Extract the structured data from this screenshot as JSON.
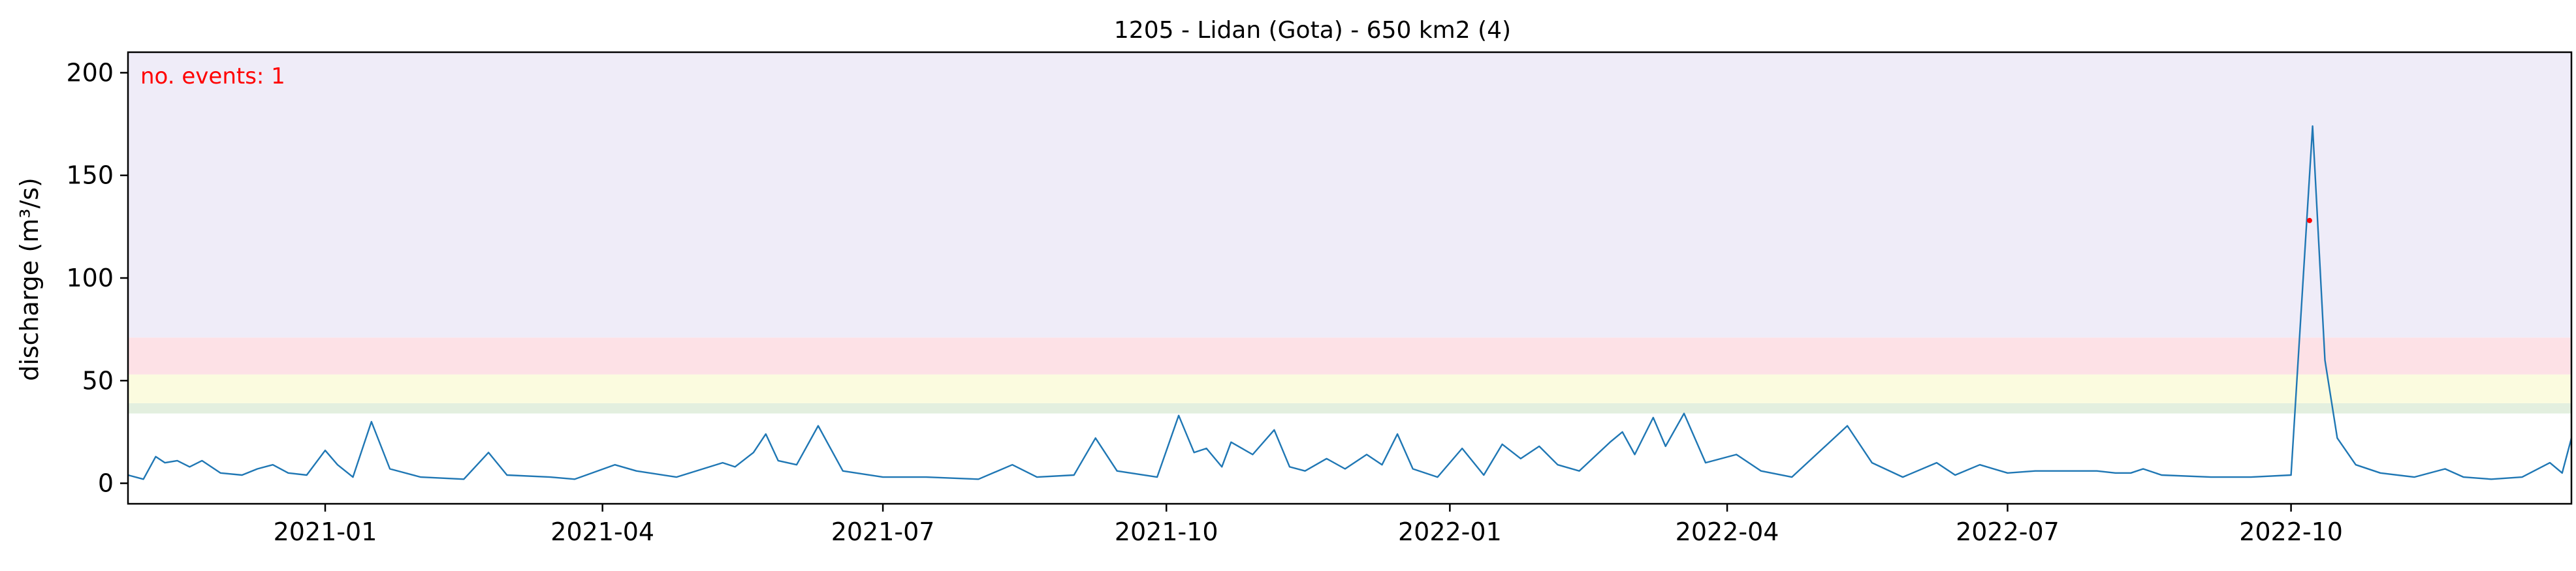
{
  "chart_data": {
    "type": "line",
    "title": "1205 - Lidan (Gota) - 650 km2 (4)",
    "xlabel": "",
    "ylabel": "discharge (m³/s)",
    "annotation": "no. events: 1",
    "xlim": [
      "2020-10-29",
      "2022-12-31"
    ],
    "ylim": [
      -10,
      210
    ],
    "x_ticks": [
      "2021-01",
      "2021-04",
      "2021-07",
      "2021-10",
      "2022-01",
      "2022-04",
      "2022-07",
      "2022-10"
    ],
    "y_ticks": [
      0,
      50,
      100,
      150,
      200
    ],
    "threshold_bands": [
      {
        "from": 34,
        "to": 39,
        "color": "#e3efdf"
      },
      {
        "from": 39,
        "to": 53,
        "color": "#fbfbdf"
      },
      {
        "from": 53,
        "to": 71,
        "color": "#fde1e6"
      },
      {
        "from": 71,
        "to": 210,
        "color": "#efecf8"
      }
    ],
    "line_color": "#1f77b4",
    "event_color": "#ff0000",
    "grid": false,
    "legend": "none",
    "series": [
      {
        "points": [
          [
            "2020-10-29",
            4
          ],
          [
            "2020-11-03",
            2
          ],
          [
            "2020-11-07",
            13
          ],
          [
            "2020-11-10",
            10
          ],
          [
            "2020-11-14",
            11
          ],
          [
            "2020-11-18",
            8
          ],
          [
            "2020-11-22",
            11
          ],
          [
            "2020-11-28",
            5
          ],
          [
            "2020-12-05",
            4
          ],
          [
            "2020-12-10",
            7
          ],
          [
            "2020-12-15",
            9
          ],
          [
            "2020-12-20",
            5
          ],
          [
            "2020-12-26",
            4
          ],
          [
            "2021-01-01",
            16
          ],
          [
            "2021-01-05",
            9
          ],
          [
            "2021-01-10",
            3
          ],
          [
            "2021-01-16",
            30
          ],
          [
            "2021-01-22",
            7
          ],
          [
            "2021-02-01",
            3
          ],
          [
            "2021-02-15",
            2
          ],
          [
            "2021-02-23",
            15
          ],
          [
            "2021-03-01",
            4
          ],
          [
            "2021-03-15",
            3
          ],
          [
            "2021-03-23",
            2
          ],
          [
            "2021-04-05",
            9
          ],
          [
            "2021-04-12",
            6
          ],
          [
            "2021-04-25",
            3
          ],
          [
            "2021-05-10",
            10
          ],
          [
            "2021-05-14",
            8
          ],
          [
            "2021-05-20",
            15
          ],
          [
            "2021-05-24",
            24
          ],
          [
            "2021-05-28",
            11
          ],
          [
            "2021-06-03",
            9
          ],
          [
            "2021-06-10",
            28
          ],
          [
            "2021-06-18",
            6
          ],
          [
            "2021-07-01",
            3
          ],
          [
            "2021-07-15",
            3
          ],
          [
            "2021-08-01",
            2
          ],
          [
            "2021-08-12",
            9
          ],
          [
            "2021-08-20",
            3
          ],
          [
            "2021-09-01",
            4
          ],
          [
            "2021-09-08",
            22
          ],
          [
            "2021-09-15",
            6
          ],
          [
            "2021-09-28",
            3
          ],
          [
            "2021-10-05",
            33
          ],
          [
            "2021-10-10",
            15
          ],
          [
            "2021-10-14",
            17
          ],
          [
            "2021-10-19",
            8
          ],
          [
            "2021-10-22",
            20
          ],
          [
            "2021-10-29",
            14
          ],
          [
            "2021-11-05",
            26
          ],
          [
            "2021-11-10",
            8
          ],
          [
            "2021-11-15",
            6
          ],
          [
            "2021-11-22",
            12
          ],
          [
            "2021-11-28",
            7
          ],
          [
            "2021-12-05",
            14
          ],
          [
            "2021-12-10",
            9
          ],
          [
            "2021-12-15",
            24
          ],
          [
            "2021-12-20",
            7
          ],
          [
            "2021-12-28",
            3
          ],
          [
            "2022-01-05",
            17
          ],
          [
            "2022-01-12",
            4
          ],
          [
            "2022-01-18",
            19
          ],
          [
            "2022-01-24",
            12
          ],
          [
            "2022-01-30",
            18
          ],
          [
            "2022-02-05",
            9
          ],
          [
            "2022-02-12",
            6
          ],
          [
            "2022-02-22",
            20
          ],
          [
            "2022-02-26",
            25
          ],
          [
            "2022-03-02",
            14
          ],
          [
            "2022-03-08",
            32
          ],
          [
            "2022-03-12",
            18
          ],
          [
            "2022-03-18",
            34
          ],
          [
            "2022-03-25",
            10
          ],
          [
            "2022-04-04",
            14
          ],
          [
            "2022-04-12",
            6
          ],
          [
            "2022-04-22",
            3
          ],
          [
            "2022-05-10",
            28
          ],
          [
            "2022-05-18",
            10
          ],
          [
            "2022-05-28",
            3
          ],
          [
            "2022-06-08",
            10
          ],
          [
            "2022-06-14",
            4
          ],
          [
            "2022-06-22",
            9
          ],
          [
            "2022-07-01",
            5
          ],
          [
            "2022-07-10",
            6
          ],
          [
            "2022-07-16",
            6
          ],
          [
            "2022-07-22",
            6
          ],
          [
            "2022-07-30",
            6
          ],
          [
            "2022-08-05",
            5
          ],
          [
            "2022-08-10",
            5
          ],
          [
            "2022-08-14",
            7
          ],
          [
            "2022-08-20",
            4
          ],
          [
            "2022-09-05",
            3
          ],
          [
            "2022-09-18",
            3
          ],
          [
            "2022-10-01",
            4
          ],
          [
            "2022-10-08",
            174
          ],
          [
            "2022-10-12",
            60
          ],
          [
            "2022-10-16",
            22
          ],
          [
            "2022-10-22",
            9
          ],
          [
            "2022-10-30",
            5
          ],
          [
            "2022-11-10",
            3
          ],
          [
            "2022-11-20",
            7
          ],
          [
            "2022-11-26",
            3
          ],
          [
            "2022-12-05",
            2
          ],
          [
            "2022-12-15",
            3
          ],
          [
            "2022-12-24",
            10
          ],
          [
            "2022-12-28",
            5
          ],
          [
            "2022-12-31",
            22
          ]
        ]
      }
    ],
    "event_points": [
      [
        "2022-10-07",
        128
      ]
    ]
  }
}
